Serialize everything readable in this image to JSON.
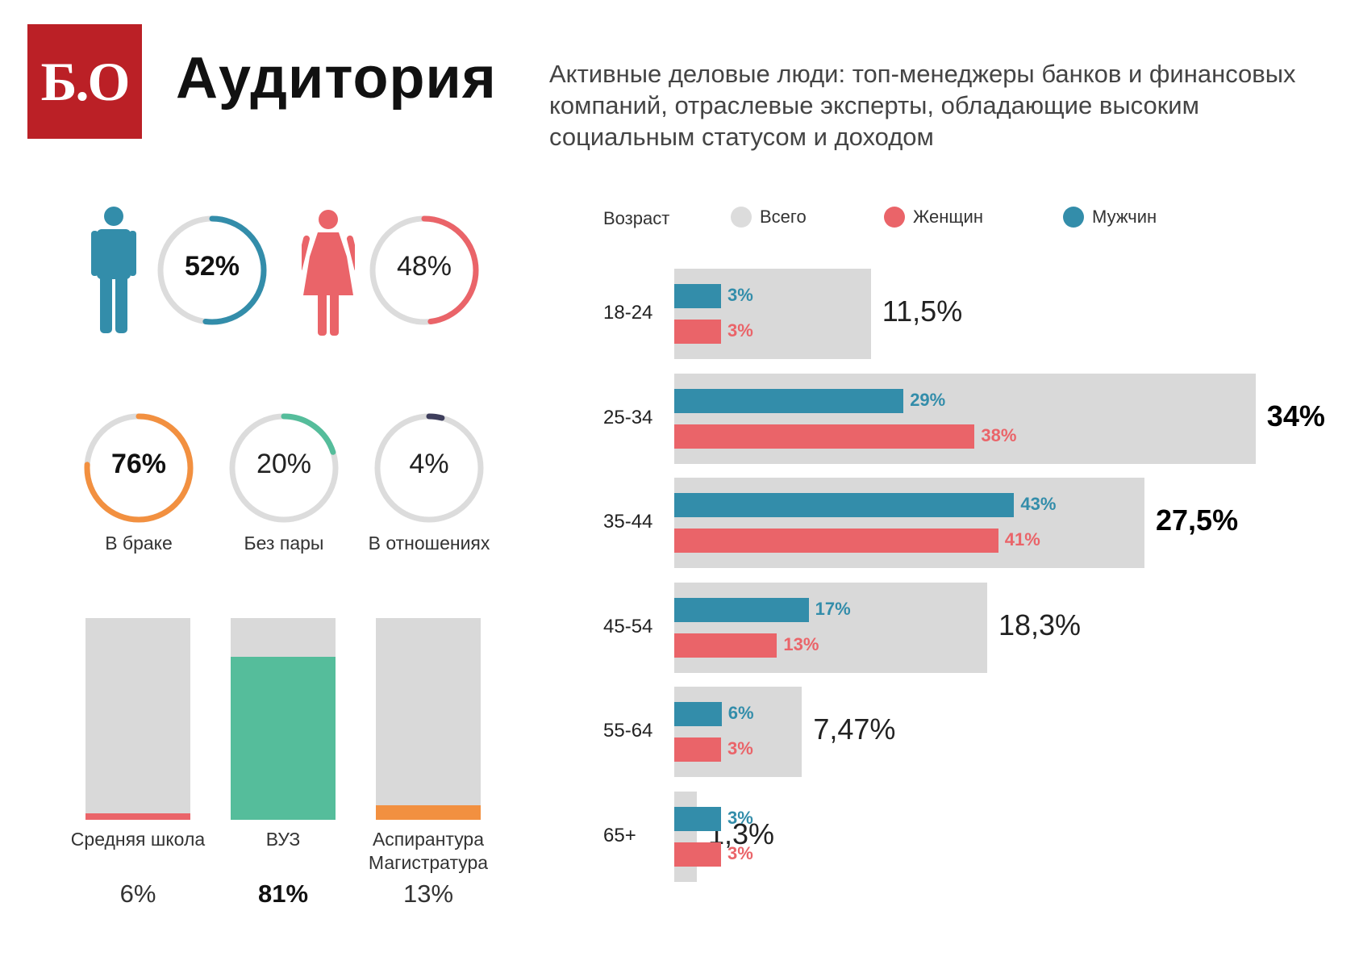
{
  "header": {
    "logo_text": "Б.О",
    "title": "Аудитория",
    "subtitle": "Активные деловые люди: топ-менеджеры банков и финансовых компаний, отраслевые эксперты, обладающие высоким социальным статусом и доходом"
  },
  "colors": {
    "brand_red": "#bb2026",
    "male": "#338daa",
    "female": "#ea6469",
    "married": "#f29040",
    "single": "#55bd9b",
    "relationship": "#3e3e5c",
    "track": "#dcdcdc",
    "total_bar": "#d9d9d9",
    "edu_school": "#ea6469",
    "edu_university": "#55bd9b",
    "edu_graduate": "#f29040"
  },
  "gender": {
    "male": {
      "icon": "male-person-icon",
      "value_label": "52%",
      "fraction": 0.52
    },
    "female": {
      "icon": "female-person-icon",
      "value_label": "48%",
      "fraction": 0.48
    }
  },
  "marital": [
    {
      "label": "В браке",
      "value_label": "76%",
      "fraction": 0.76,
      "bold": true
    },
    {
      "label": "Без пары",
      "value_label": "20%",
      "fraction": 0.2,
      "bold": false
    },
    {
      "label": "В отношениях",
      "value_label": "4%",
      "fraction": 0.04,
      "bold": false
    }
  ],
  "education": [
    {
      "label": "Средняя школа",
      "value_label": "6%",
      "fraction": 0.06,
      "bold": false
    },
    {
      "label": "ВУЗ",
      "value_label": "81%",
      "fraction": 0.81,
      "bold": true
    },
    {
      "label": "Аспирантура\nМагистратура",
      "value_label": "13%",
      "fraction": 0.13,
      "bold": false
    }
  ],
  "legend": {
    "age_title": "Возраст",
    "total": "Всего",
    "female": "Женщин",
    "male": "Мужчин"
  },
  "chart_data": {
    "type": "bar",
    "orientation": "horizontal",
    "categories": [
      "18-24",
      "25-34",
      "35-44",
      "45-54",
      "55-64",
      "65+"
    ],
    "series": [
      {
        "name": "Всего",
        "values": [
          11.5,
          34,
          27.5,
          18.3,
          7.47,
          1.3
        ],
        "labels": [
          "11,5%",
          "34%",
          "27,5%",
          "18,3%",
          "7,47%",
          "1,3%"
        ]
      },
      {
        "name": "Мужчин",
        "values": [
          3,
          29,
          43,
          17,
          6,
          3
        ],
        "labels": [
          "3%",
          "29%",
          "43%",
          "17%",
          "6%",
          "3%"
        ]
      },
      {
        "name": "Женщин",
        "values": [
          3,
          38,
          41,
          13,
          3,
          3
        ],
        "labels": [
          "3%",
          "38%",
          "41%",
          "13%",
          "3%",
          "3%"
        ]
      }
    ],
    "highlighted_totals": [
      "25-34",
      "35-44"
    ],
    "legend_position": "top",
    "grid": false
  }
}
